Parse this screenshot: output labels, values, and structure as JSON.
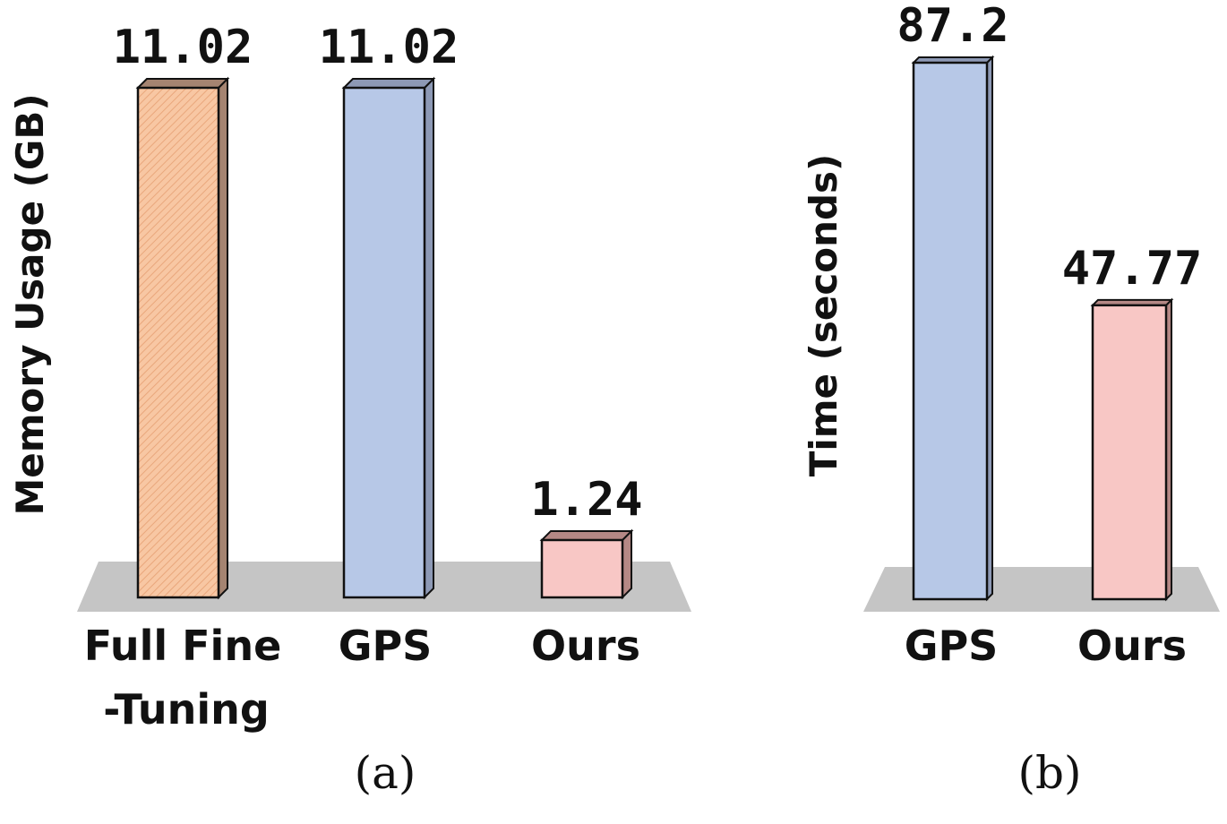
{
  "chart_data": [
    {
      "type": "bar",
      "ylabel": "Memory Usage (GB)",
      "caption": "(a)",
      "ylim": [
        0,
        11.02
      ],
      "categories": [
        {
          "line1": "Full Fine",
          "line2": "-Tuning"
        },
        {
          "line1": "GPS",
          "line2": ""
        },
        {
          "line1": "Ours",
          "line2": ""
        }
      ],
      "values": [
        11.02,
        11.02,
        1.24
      ],
      "value_labels": [
        "11.02",
        "11.02",
        "1.24"
      ],
      "colors": [
        "#f8c7a3",
        "#b7c8e7",
        "#f8c7c5"
      ],
      "side_colors": [
        "#a58471",
        "#8d99b5",
        "#b58885"
      ],
      "grid": false,
      "legend": "none"
    },
    {
      "type": "bar",
      "ylabel": "Time (seconds)",
      "caption": "(b)",
      "ylim": [
        0,
        87.2
      ],
      "categories": [
        {
          "line1": "GPS",
          "line2": ""
        },
        {
          "line1": "Ours",
          "line2": ""
        }
      ],
      "values": [
        87.2,
        47.77
      ],
      "value_labels": [
        "87.2",
        "47.77"
      ],
      "colors": [
        "#b7c8e7",
        "#f8c7c5"
      ],
      "side_colors": [
        "#8d99b5",
        "#b58885"
      ],
      "grid": false,
      "legend": "none"
    }
  ]
}
